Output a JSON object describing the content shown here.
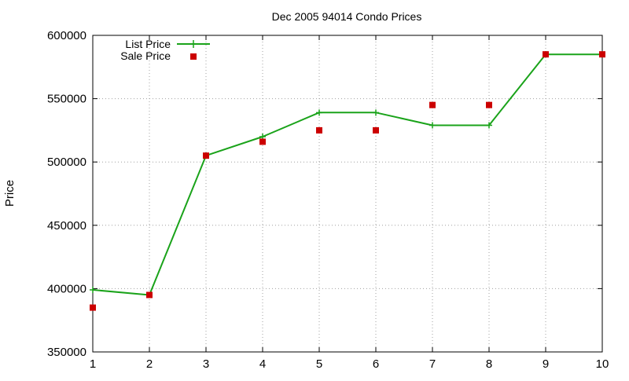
{
  "chart_data": {
    "type": "line",
    "title": "Dec 2005 94014 Condo Prices",
    "xlabel": "",
    "ylabel": "Price",
    "xlim": [
      1,
      10
    ],
    "ylim": [
      350000,
      600000
    ],
    "x_ticks": [
      "1",
      "2",
      "3",
      "4",
      "5",
      "6",
      "7",
      "8",
      "9",
      "10"
    ],
    "y_ticks": [
      "350000",
      "400000",
      "450000",
      "500000",
      "550000",
      "600000"
    ],
    "grid": true,
    "legend_position": "top-left",
    "x": [
      1,
      2,
      3,
      4,
      5,
      6,
      7,
      8,
      9,
      10
    ],
    "series": [
      {
        "name": "List Price",
        "style": "linespoints",
        "marker": "plus",
        "color": "#1aa31a",
        "values": [
          399000,
          395000,
          505000,
          520000,
          539000,
          539000,
          529000,
          529000,
          585000,
          585000
        ]
      },
      {
        "name": "Sale Price",
        "style": "points",
        "marker": "square",
        "color": "#cc0000",
        "values": [
          385000,
          395000,
          505000,
          516000,
          525000,
          525000,
          545000,
          545000,
          585000,
          585000
        ]
      }
    ]
  }
}
